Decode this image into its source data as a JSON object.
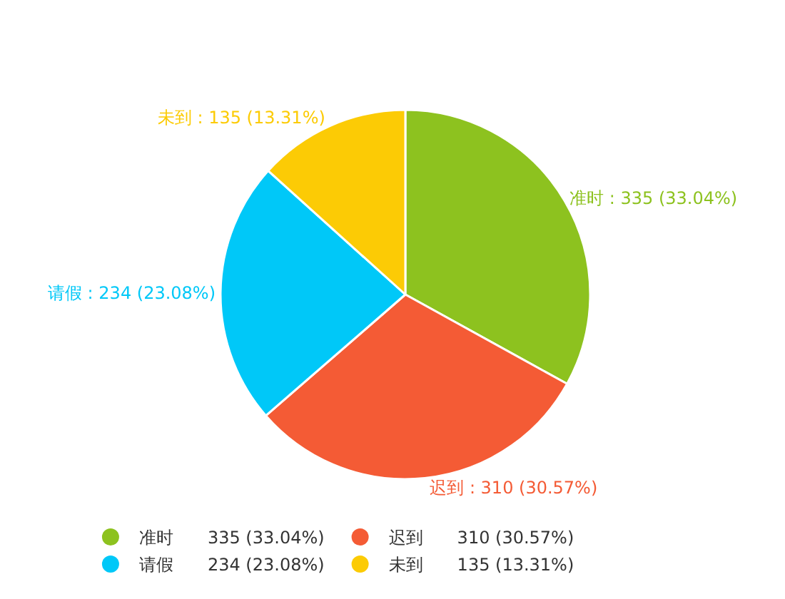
{
  "chart_data": {
    "type": "pie",
    "categories": [
      "准时",
      "迟到",
      "请假",
      "未到"
    ],
    "values": [
      335,
      310,
      234,
      135
    ],
    "value_labels": [
      "335 (33.04%)",
      "310 (30.57%)",
      "234 (23.08%)",
      "135 (13.31%)"
    ],
    "colors": [
      "#8dc21f",
      "#f45b35",
      "#00c8f8",
      "#fccb05"
    ],
    "legend": "bottom"
  }
}
